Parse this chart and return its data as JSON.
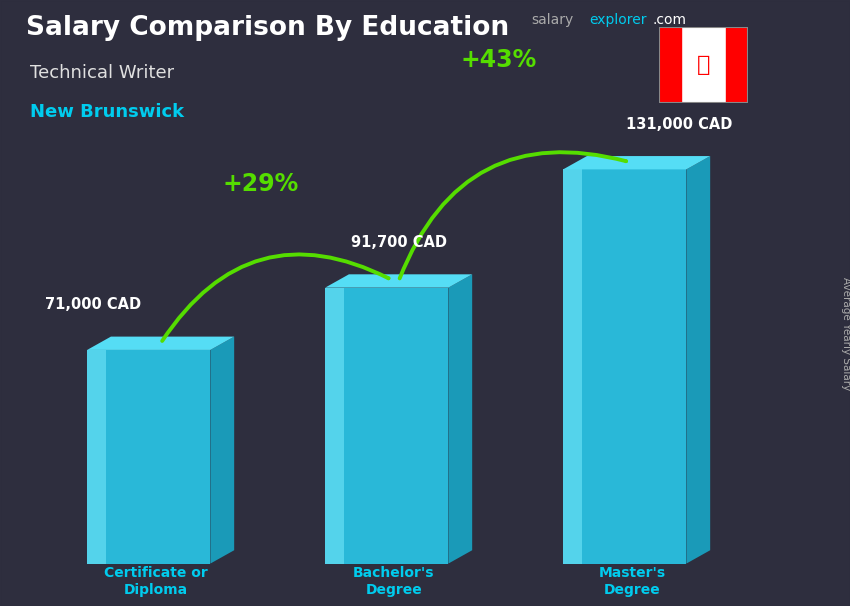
{
  "title_main": "Salary Comparison By Education",
  "title_sub": "Technical Writer",
  "title_location": "New Brunswick",
  "categories": [
    "Certificate or\nDiploma",
    "Bachelor's\nDegree",
    "Master's\nDegree"
  ],
  "values": [
    71000,
    91700,
    131000
  ],
  "value_labels": [
    "71,000 CAD",
    "91,700 CAD",
    "131,000 CAD"
  ],
  "pct_labels": [
    "+29%",
    "+43%"
  ],
  "bar_front_color": "#29c5e6",
  "bar_top_color": "#55ddf5",
  "bar_side_color": "#1a9ab8",
  "bar_highlight_color": "#80eeff",
  "bg_color": "#3a3a4a",
  "title_color": "#ffffff",
  "subtitle_color": "#e0e0e0",
  "location_color": "#00ccee",
  "value_label_color": "#ffffff",
  "pct_color": "#66ff00",
  "arrow_color": "#55dd00",
  "category_label_color": "#00ccee",
  "ylabel_text": "Average Yearly Salary",
  "website_salary_color": "#aaaaaa",
  "website_explorer_color": "#00ccee",
  "website_com_color": "#ffffff",
  "flag_red": "#FF0000",
  "flag_white": "#FFFFFF"
}
